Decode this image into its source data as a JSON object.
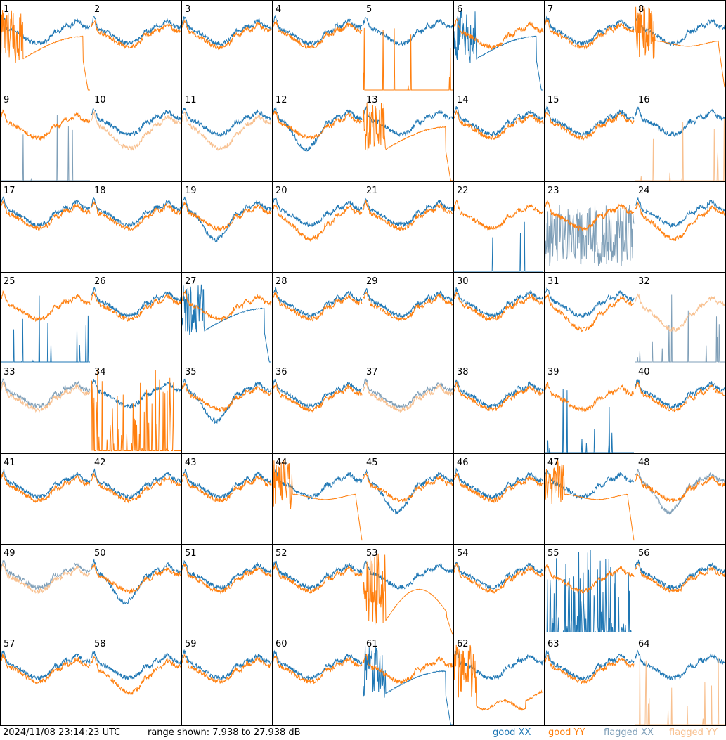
{
  "footer": {
    "timestamp": "2024/11/08 23:14:23 UTC",
    "range_text": "range shown: 7.938 to 27.938 dB"
  },
  "legend": [
    {
      "id": "good_xx",
      "label": "good XX",
      "color": "#1f77b4"
    },
    {
      "id": "good_yy",
      "label": "good YY",
      "color": "#ff7f0e"
    },
    {
      "id": "flagged_xx",
      "label": "flagged XX",
      "color": "#7f9fb8"
    },
    {
      "id": "flagged_yy",
      "label": "flagged YY",
      "color": "#f8c08f"
    }
  ],
  "chart_data": {
    "type": "line",
    "layout": "small multiples 8x8",
    "ylim": [
      7.938,
      27.938
    ],
    "yunit": "dB",
    "grid": false,
    "legend_placement": "bottom-right",
    "panels": [
      {
        "id": 1,
        "label": "1",
        "xx": "good",
        "yy": "good",
        "xx_shape": "normal",
        "yy_shape": "wild_rolloff"
      },
      {
        "id": 2,
        "label": "2",
        "xx": "good",
        "yy": "good",
        "xx_shape": "normal",
        "yy_shape": "normal"
      },
      {
        "id": 3,
        "label": "3",
        "xx": "good",
        "yy": "good",
        "xx_shape": "normal",
        "yy_shape": "normal"
      },
      {
        "id": 4,
        "label": "4",
        "xx": "good",
        "yy": "good",
        "xx_shape": "normal",
        "yy_shape": "normal"
      },
      {
        "id": 5,
        "label": "5",
        "xx": "good",
        "yy": "good",
        "xx_shape": "normal",
        "yy_shape": "spikes"
      },
      {
        "id": 6,
        "label": "6",
        "xx": "good",
        "yy": "good",
        "xx_shape": "wild_rolloff",
        "yy_shape": "normal"
      },
      {
        "id": 7,
        "label": "7",
        "xx": "good",
        "yy": "good",
        "xx_shape": "normal",
        "yy_shape": "normal"
      },
      {
        "id": 8,
        "label": "8",
        "xx": "good",
        "yy": "good",
        "xx_shape": "normal",
        "yy_shape": "wild_flat"
      },
      {
        "id": 9,
        "label": "9",
        "xx": "flagged",
        "yy": "good",
        "xx_shape": "spikes",
        "yy_shape": "normal"
      },
      {
        "id": 10,
        "label": "10",
        "xx": "good",
        "yy": "flagged",
        "xx_shape": "normal",
        "yy_shape": "normal_low"
      },
      {
        "id": 11,
        "label": "11",
        "xx": "good",
        "yy": "flagged",
        "xx_shape": "normal",
        "yy_shape": "normal_low"
      },
      {
        "id": 12,
        "label": "12",
        "xx": "good",
        "yy": "good",
        "xx_shape": "low_mid",
        "yy_shape": "normal"
      },
      {
        "id": 13,
        "label": "13",
        "xx": "good",
        "yy": "good",
        "xx_shape": "normal",
        "yy_shape": "wild_rolloff"
      },
      {
        "id": 14,
        "label": "14",
        "xx": "good",
        "yy": "good",
        "xx_shape": "normal",
        "yy_shape": "normal"
      },
      {
        "id": 15,
        "label": "15",
        "xx": "good",
        "yy": "good",
        "xx_shape": "normal",
        "yy_shape": "normal"
      },
      {
        "id": 16,
        "label": "16",
        "xx": "good",
        "yy": "flagged",
        "xx_shape": "normal",
        "yy_shape": "spikes"
      },
      {
        "id": 17,
        "label": "17",
        "xx": "good",
        "yy": "good",
        "xx_shape": "normal",
        "yy_shape": "normal"
      },
      {
        "id": 18,
        "label": "18",
        "xx": "good",
        "yy": "good",
        "xx_shape": "normal",
        "yy_shape": "normal"
      },
      {
        "id": 19,
        "label": "19",
        "xx": "good",
        "yy": "good",
        "xx_shape": "low_mid",
        "yy_shape": "normal"
      },
      {
        "id": 20,
        "label": "20",
        "xx": "good",
        "yy": "good",
        "xx_shape": "normal",
        "yy_shape": "normal_low"
      },
      {
        "id": 21,
        "label": "21",
        "xx": "good",
        "yy": "good",
        "xx_shape": "normal",
        "yy_shape": "normal"
      },
      {
        "id": 22,
        "label": "22",
        "xx": "good",
        "yy": "good",
        "xx_shape": "spikes",
        "yy_shape": "normal"
      },
      {
        "id": 23,
        "label": "23",
        "xx": "flagged",
        "yy": "good",
        "xx_shape": "noisy_low",
        "yy_shape": "normal"
      },
      {
        "id": 24,
        "label": "24",
        "xx": "good",
        "yy": "good",
        "xx_shape": "normal",
        "yy_shape": "normal_low"
      },
      {
        "id": 25,
        "label": "25",
        "xx": "good",
        "yy": "good",
        "xx_shape": "spikes",
        "yy_shape": "normal"
      },
      {
        "id": 26,
        "label": "26",
        "xx": "good",
        "yy": "good",
        "xx_shape": "normal",
        "yy_shape": "normal"
      },
      {
        "id": 27,
        "label": "27",
        "xx": "good",
        "yy": "good",
        "xx_shape": "wild_rolloff",
        "yy_shape": "normal"
      },
      {
        "id": 28,
        "label": "28",
        "xx": "good",
        "yy": "good",
        "xx_shape": "normal",
        "yy_shape": "normal"
      },
      {
        "id": 29,
        "label": "29",
        "xx": "good",
        "yy": "good",
        "xx_shape": "normal",
        "yy_shape": "normal"
      },
      {
        "id": 30,
        "label": "30",
        "xx": "good",
        "yy": "good",
        "xx_shape": "normal",
        "yy_shape": "normal"
      },
      {
        "id": 31,
        "label": "31",
        "xx": "good",
        "yy": "good",
        "xx_shape": "normal",
        "yy_shape": "normal_low"
      },
      {
        "id": 32,
        "label": "32",
        "xx": "flagged",
        "yy": "flagged",
        "xx_shape": "spikes",
        "yy_shape": "normal_low"
      },
      {
        "id": 33,
        "label": "33",
        "xx": "flagged",
        "yy": "flagged",
        "xx_shape": "normal",
        "yy_shape": "normal"
      },
      {
        "id": 34,
        "label": "34",
        "xx": "good",
        "yy": "good",
        "xx_shape": "normal",
        "yy_shape": "spikes_high"
      },
      {
        "id": 35,
        "label": "35",
        "xx": "good",
        "yy": "good",
        "xx_shape": "low_mid",
        "yy_shape": "normal"
      },
      {
        "id": 36,
        "label": "36",
        "xx": "good",
        "yy": "good",
        "xx_shape": "normal",
        "yy_shape": "normal"
      },
      {
        "id": 37,
        "label": "37",
        "xx": "flagged",
        "yy": "flagged",
        "xx_shape": "normal",
        "yy_shape": "normal"
      },
      {
        "id": 38,
        "label": "38",
        "xx": "good",
        "yy": "good",
        "xx_shape": "normal",
        "yy_shape": "normal"
      },
      {
        "id": 39,
        "label": "39",
        "xx": "good",
        "yy": "good",
        "xx_shape": "spikes",
        "yy_shape": "normal"
      },
      {
        "id": 40,
        "label": "40",
        "xx": "good",
        "yy": "good",
        "xx_shape": "normal",
        "yy_shape": "normal"
      },
      {
        "id": 41,
        "label": "41",
        "xx": "good",
        "yy": "good",
        "xx_shape": "normal",
        "yy_shape": "normal"
      },
      {
        "id": 42,
        "label": "42",
        "xx": "good",
        "yy": "good",
        "xx_shape": "normal",
        "yy_shape": "normal"
      },
      {
        "id": 43,
        "label": "43",
        "xx": "good",
        "yy": "good",
        "xx_shape": "normal",
        "yy_shape": "normal"
      },
      {
        "id": 44,
        "label": "44",
        "xx": "good",
        "yy": "good",
        "xx_shape": "normal",
        "yy_shape": "wild_flat"
      },
      {
        "id": 45,
        "label": "45",
        "xx": "good",
        "yy": "good",
        "xx_shape": "low_mid",
        "yy_shape": "normal"
      },
      {
        "id": 46,
        "label": "46",
        "xx": "good",
        "yy": "good",
        "xx_shape": "normal",
        "yy_shape": "normal"
      },
      {
        "id": 47,
        "label": "47",
        "xx": "good",
        "yy": "good",
        "xx_shape": "normal",
        "yy_shape": "wild_flat"
      },
      {
        "id": 48,
        "label": "48",
        "xx": "flagged",
        "yy": "good",
        "xx_shape": "low_mid",
        "yy_shape": "normal"
      },
      {
        "id": 49,
        "label": "49",
        "xx": "flagged",
        "yy": "flagged",
        "xx_shape": "normal",
        "yy_shape": "normal"
      },
      {
        "id": 50,
        "label": "50",
        "xx": "good",
        "yy": "good",
        "xx_shape": "low_mid",
        "yy_shape": "normal"
      },
      {
        "id": 51,
        "label": "51",
        "xx": "good",
        "yy": "good",
        "xx_shape": "normal",
        "yy_shape": "normal"
      },
      {
        "id": 52,
        "label": "52",
        "xx": "good",
        "yy": "good",
        "xx_shape": "normal",
        "yy_shape": "normal"
      },
      {
        "id": 53,
        "label": "53",
        "xx": "good",
        "yy": "good",
        "xx_shape": "normal",
        "yy_shape": "wild_hump"
      },
      {
        "id": 54,
        "label": "54",
        "xx": "good",
        "yy": "good",
        "xx_shape": "normal",
        "yy_shape": "normal"
      },
      {
        "id": 55,
        "label": "55",
        "xx": "good",
        "yy": "good",
        "xx_shape": "spikes_high",
        "yy_shape": "normal"
      },
      {
        "id": 56,
        "label": "56",
        "xx": "good",
        "yy": "good",
        "xx_shape": "normal",
        "yy_shape": "normal"
      },
      {
        "id": 57,
        "label": "57",
        "xx": "good",
        "yy": "good",
        "xx_shape": "normal",
        "yy_shape": "normal"
      },
      {
        "id": 58,
        "label": "58",
        "xx": "good",
        "yy": "good",
        "xx_shape": "normal",
        "yy_shape": "normal_low"
      },
      {
        "id": 59,
        "label": "59",
        "xx": "good",
        "yy": "good",
        "xx_shape": "normal",
        "yy_shape": "normal"
      },
      {
        "id": 60,
        "label": "60",
        "xx": "good",
        "yy": "good",
        "xx_shape": "normal",
        "yy_shape": "normal"
      },
      {
        "id": 61,
        "label": "61",
        "xx": "good",
        "yy": "good",
        "xx_shape": "wild_rolloff",
        "yy_shape": "normal"
      },
      {
        "id": 62,
        "label": "62",
        "xx": "good",
        "yy": "good",
        "xx_shape": "normal",
        "yy_shape": "wild_low"
      },
      {
        "id": 63,
        "label": "63",
        "xx": "good",
        "yy": "good",
        "xx_shape": "normal",
        "yy_shape": "normal"
      },
      {
        "id": 64,
        "label": "64",
        "xx": "good",
        "yy": "flagged",
        "xx_shape": "normal",
        "yy_shape": "spikes"
      }
    ]
  }
}
